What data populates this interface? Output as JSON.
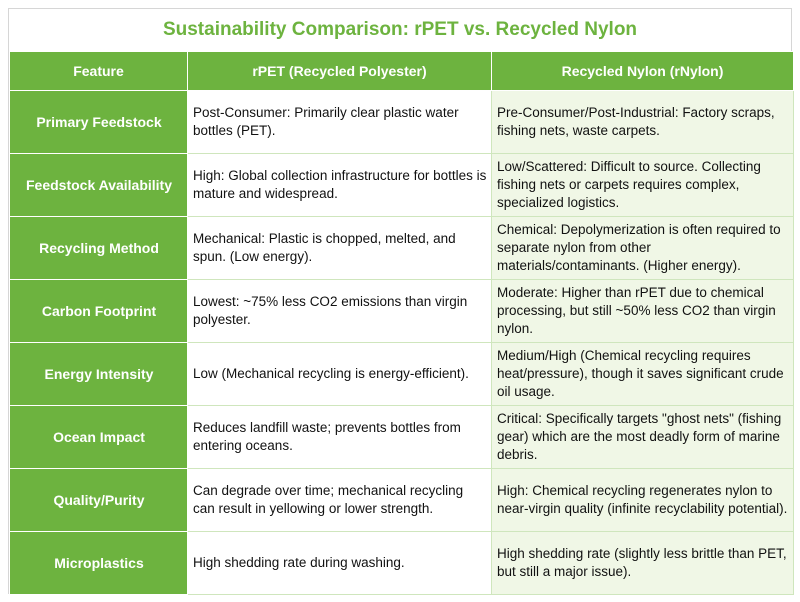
{
  "title": "Sustainability Comparison: rPET vs. Recycled Nylon",
  "headers": {
    "feature": "Feature",
    "rpet": "rPET (Recycled Polyester)",
    "rnylon": "Recycled Nylon (rNylon)"
  },
  "rows": [
    {
      "feature": "Primary Feedstock",
      "rpet": "Post-Consumer: Primarily clear plastic water bottles (PET).",
      "rnylon": "Pre-Consumer/Post-Industrial: Factory scraps, fishing nets, waste carpets."
    },
    {
      "feature": "Feedstock Availability",
      "rpet": "High: Global collection infrastructure for bottles is mature and widespread.",
      "rnylon": "Low/Scattered: Difficult to source. Collecting fishing nets or carpets requires complex, specialized logistics."
    },
    {
      "feature": "Recycling Method",
      "rpet": "Mechanical: Plastic is chopped, melted, and spun. (Low energy).",
      "rnylon": "Chemical: Depolymerization is often required to separate nylon from other materials/contaminants. (Higher energy)."
    },
    {
      "feature": "Carbon Footprint",
      "rpet": "Lowest: ~75% less CO2 emissions than virgin polyester.",
      "rnylon": "Moderate: Higher than rPET due to chemical processing, but still ~50% less CO2 than virgin nylon."
    },
    {
      "feature": "Energy Intensity",
      "rpet": "Low (Mechanical recycling is energy-efficient).",
      "rnylon": "Medium/High (Chemical recycling requires heat/pressure), though it saves significant crude oil usage."
    },
    {
      "feature": "Ocean Impact",
      "rpet": "Reduces landfill waste; prevents bottles from entering oceans.",
      "rnylon": "Critical: Specifically targets \"ghost nets\" (fishing gear) which are the most deadly form of marine debris."
    },
    {
      "feature": "Quality/Purity",
      "rpet": "Can degrade over time; mechanical recycling can result in yellowing or lower strength.",
      "rnylon": "High: Chemical recycling regenerates nylon to near-virgin quality (infinite recyclability potential)."
    },
    {
      "feature": "Microplastics",
      "rpet": "High shedding rate during washing.",
      "rnylon": "High shedding rate (slightly less brittle than PET, but still a major issue)."
    }
  ]
}
